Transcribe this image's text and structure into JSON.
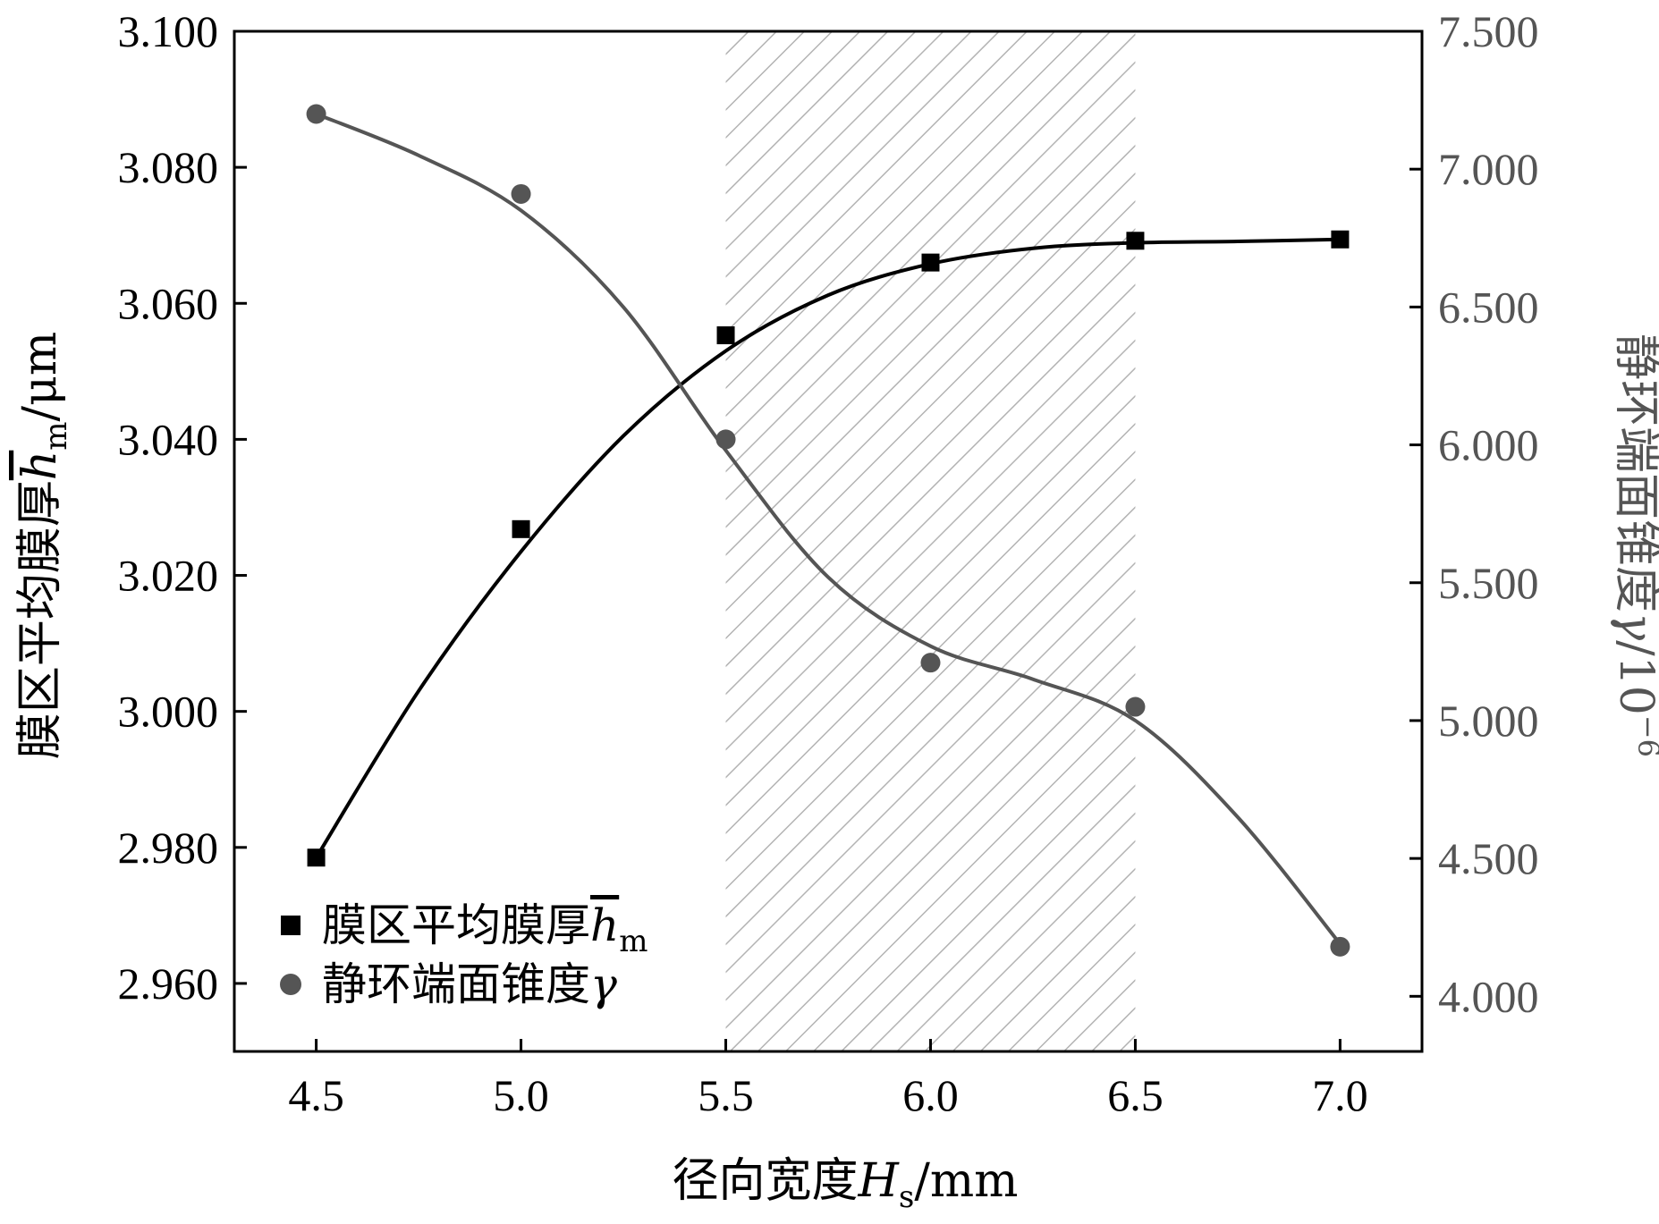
{
  "chart_data": {
    "type": "scatter",
    "xlabel": {
      "main": "径向宽度",
      "var": "H",
      "sub": "s",
      "unit": "/mm"
    },
    "ylabel_left": {
      "main": "膜区平均膜厚",
      "var": "h",
      "sub": "m",
      "unit": "/μm"
    },
    "ylabel_right": {
      "main": "静环端面锥度",
      "var": "γ",
      "unit": "/10",
      "exp": "−6"
    },
    "xlim": [
      4.3,
      7.2
    ],
    "ylim_left": [
      2.95,
      3.1
    ],
    "ylim_right": [
      3.8,
      7.5
    ],
    "x_ticks": [
      4.5,
      5.0,
      5.5,
      6.0,
      6.5,
      7.0
    ],
    "x_tick_labels": [
      "4.5",
      "5.0",
      "5.5",
      "6.0",
      "6.5",
      "7.0"
    ],
    "y_left_ticks": [
      2.96,
      2.98,
      3.0,
      3.02,
      3.04,
      3.06,
      3.08,
      3.1
    ],
    "y_left_tick_labels": [
      "2.960",
      "2.980",
      "3.000",
      "3.020",
      "3.040",
      "3.060",
      "3.080",
      "3.100"
    ],
    "y_right_ticks": [
      4.0,
      4.5,
      5.0,
      5.5,
      6.0,
      6.5,
      7.0,
      7.5
    ],
    "y_right_tick_labels": [
      "4.000",
      "4.500",
      "5.000",
      "5.500",
      "6.000",
      "6.500",
      "7.000",
      "7.500"
    ],
    "shaded_region": {
      "x_start": 5.5,
      "x_end": 6.5,
      "pattern": "diagonal-hatch"
    },
    "series": [
      {
        "name": "膜区平均膜厚",
        "legend_var": "h",
        "legend_sub": "m",
        "axis": "left",
        "marker": "square",
        "color": "#000000",
        "x": [
          4.5,
          5.0,
          5.5,
          6.0,
          6.5,
          7.0
        ],
        "y": [
          2.9785,
          3.0268,
          3.0553,
          3.066,
          3.0692,
          3.0694
        ],
        "fit_curve": [
          [
            4.5,
            2.9785
          ],
          [
            4.75,
            3.003
          ],
          [
            5.0,
            3.0235
          ],
          [
            5.25,
            3.0405
          ],
          [
            5.5,
            3.053
          ],
          [
            5.75,
            3.0612
          ],
          [
            6.0,
            3.0658
          ],
          [
            6.25,
            3.0681
          ],
          [
            6.5,
            3.0689
          ],
          [
            6.75,
            3.0691
          ],
          [
            7.0,
            3.0694
          ]
        ]
      },
      {
        "name": "静环端面锥度",
        "legend_var": "γ",
        "axis": "right",
        "marker": "circle",
        "color": "#555555",
        "x": [
          4.5,
          5.0,
          5.5,
          6.0,
          6.5,
          7.0
        ],
        "y": [
          7.2,
          6.91,
          6.02,
          5.21,
          5.05,
          4.18
        ],
        "fit_curve": [
          [
            4.5,
            7.2
          ],
          [
            4.75,
            7.05
          ],
          [
            5.0,
            6.85
          ],
          [
            5.25,
            6.5
          ],
          [
            5.5,
            5.98
          ],
          [
            5.75,
            5.52
          ],
          [
            6.0,
            5.27
          ],
          [
            6.25,
            5.15
          ],
          [
            6.5,
            5.0
          ],
          [
            6.75,
            4.65
          ],
          [
            7.0,
            4.19
          ]
        ]
      }
    ],
    "legend_position": "bottom-left",
    "grid": false
  }
}
